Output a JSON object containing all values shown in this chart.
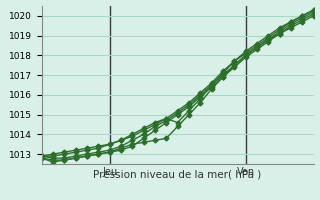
{
  "title": "",
  "xlabel": "Pression niveau de la mer( hPa )",
  "ylim": [
    1012.5,
    1020.5
  ],
  "xlim": [
    0,
    48
  ],
  "yticks": [
    1013,
    1014,
    1015,
    1016,
    1017,
    1018,
    1019,
    1020
  ],
  "vlines": [
    12,
    36
  ],
  "vline_labels": [
    "Jeu",
    "Ven"
  ],
  "bg_color": "#d8f0e8",
  "grid_color": "#a8d8c8",
  "line_color": "#2d6e2d",
  "lines": [
    [
      1012.8,
      1012.6,
      1012.7,
      1012.8,
      1012.9,
      1013.0,
      1013.1,
      1013.2,
      1013.4,
      1013.8,
      1014.2,
      1014.6,
      1015.0,
      1015.4,
      1015.9,
      1016.4,
      1016.9,
      1017.4,
      1017.9,
      1018.3,
      1018.7,
      1019.1,
      1019.5,
      1019.8,
      1020.1
    ],
    [
      1012.9,
      1012.8,
      1012.8,
      1012.9,
      1013.0,
      1013.1,
      1013.2,
      1013.4,
      1013.7,
      1014.0,
      1014.4,
      1014.7,
      1015.1,
      1015.5,
      1016.0,
      1016.5,
      1017.0,
      1017.5,
      1018.0,
      1018.4,
      1018.8,
      1019.2,
      1019.6,
      1019.9,
      1020.2
    ],
    [
      1012.9,
      1012.9,
      1013.0,
      1013.1,
      1013.2,
      1013.3,
      1013.5,
      1013.7,
      1013.9,
      1014.2,
      1014.5,
      1014.8,
      1015.2,
      1015.6,
      1016.1,
      1016.6,
      1017.2,
      1017.7,
      1018.1,
      1018.5,
      1018.9,
      1019.3,
      1019.7,
      1020.0,
      1020.3
    ],
    [
      1012.9,
      1013.0,
      1013.1,
      1013.2,
      1013.3,
      1013.4,
      1013.5,
      1013.7,
      1014.0,
      1014.3,
      1014.6,
      1014.8,
      1014.6,
      1015.2,
      1015.8,
      1016.5,
      1017.1,
      1017.7,
      1018.2,
      1018.6,
      1019.0,
      1019.4,
      1019.7,
      1020.0,
      1020.3
    ],
    [
      1012.8,
      1012.7,
      1012.7,
      1012.8,
      1012.9,
      1013.0,
      1013.1,
      1013.3,
      1013.5,
      1013.6,
      1013.7,
      1013.8,
      1014.4,
      1015.0,
      1015.6,
      1016.3,
      1016.9,
      1017.5,
      1018.0,
      1018.4,
      1018.8,
      1019.1,
      1019.4,
      1019.7,
      1020.0
    ]
  ]
}
